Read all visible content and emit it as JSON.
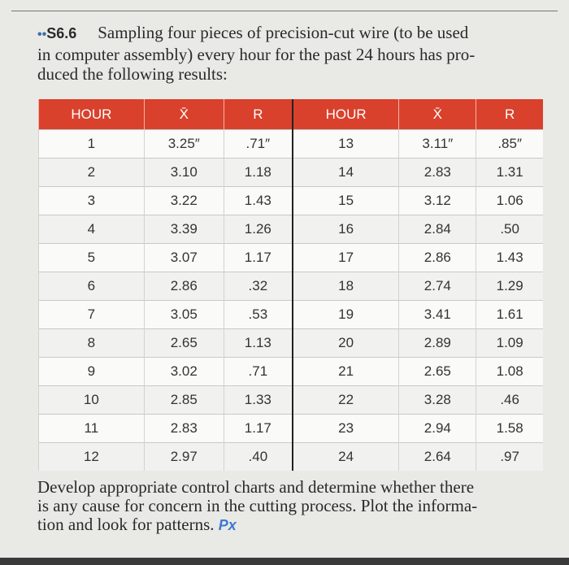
{
  "header": {
    "bullets": "••",
    "number": "S6.6",
    "lines": [
      "Sampling four pieces of precision-cut wire (to be used",
      "in computer assembly) every hour for the past 24 hours has pro-",
      "duced the following results:"
    ]
  },
  "table": {
    "columns": [
      "HOUR",
      "X̄",
      "R",
      "HOUR",
      "X̄",
      "R"
    ],
    "rows": [
      [
        "1",
        "3.25″",
        ".71″",
        "13",
        "3.11″",
        ".85″"
      ],
      [
        "2",
        "3.10",
        "1.18",
        "14",
        "2.83",
        "1.31"
      ],
      [
        "3",
        "3.22",
        "1.43",
        "15",
        "3.12",
        "1.06"
      ],
      [
        "4",
        "3.39",
        "1.26",
        "16",
        "2.84",
        ".50"
      ],
      [
        "5",
        "3.07",
        "1.17",
        "17",
        "2.86",
        "1.43"
      ],
      [
        "6",
        "2.86",
        ".32",
        "18",
        "2.74",
        "1.29"
      ],
      [
        "7",
        "3.05",
        ".53",
        "19",
        "3.41",
        "1.61"
      ],
      [
        "8",
        "2.65",
        "1.13",
        "20",
        "2.89",
        "1.09"
      ],
      [
        "9",
        "3.02",
        ".71",
        "21",
        "2.65",
        "1.08"
      ],
      [
        "10",
        "2.85",
        "1.33",
        "22",
        "3.28",
        ".46"
      ],
      [
        "11",
        "2.83",
        "1.17",
        "23",
        "2.94",
        "1.58"
      ],
      [
        "12",
        "2.97",
        ".40",
        "24",
        "2.64",
        ".97"
      ]
    ]
  },
  "footer": {
    "lines": [
      "Develop appropriate control charts and determine whether there",
      "is any cause for concern in the cutting process. Plot the informa-",
      "tion and look for patterns."
    ],
    "icon": "Px"
  }
}
